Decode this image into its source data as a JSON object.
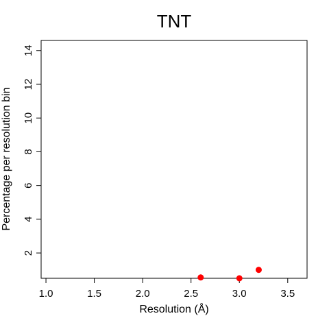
{
  "chart_data": {
    "type": "scatter",
    "title": "TNT",
    "xlabel": "Resolution (Å)",
    "ylabel": "Percentage per resolution bin",
    "xlim": [
      0.95,
      3.7
    ],
    "ylim": [
      0.5,
      14.6
    ],
    "xticks": [
      "1.0",
      "1.5",
      "2.0",
      "2.5",
      "3.0",
      "3.5"
    ],
    "yticks": [
      "2",
      "4",
      "6",
      "8",
      "10",
      "12",
      "14"
    ],
    "grid": false,
    "series": [
      {
        "x": [
          2.6,
          3.0,
          3.2
        ],
        "y": [
          0.55,
          0.5,
          1.0
        ],
        "color": "#ff0000"
      }
    ]
  }
}
